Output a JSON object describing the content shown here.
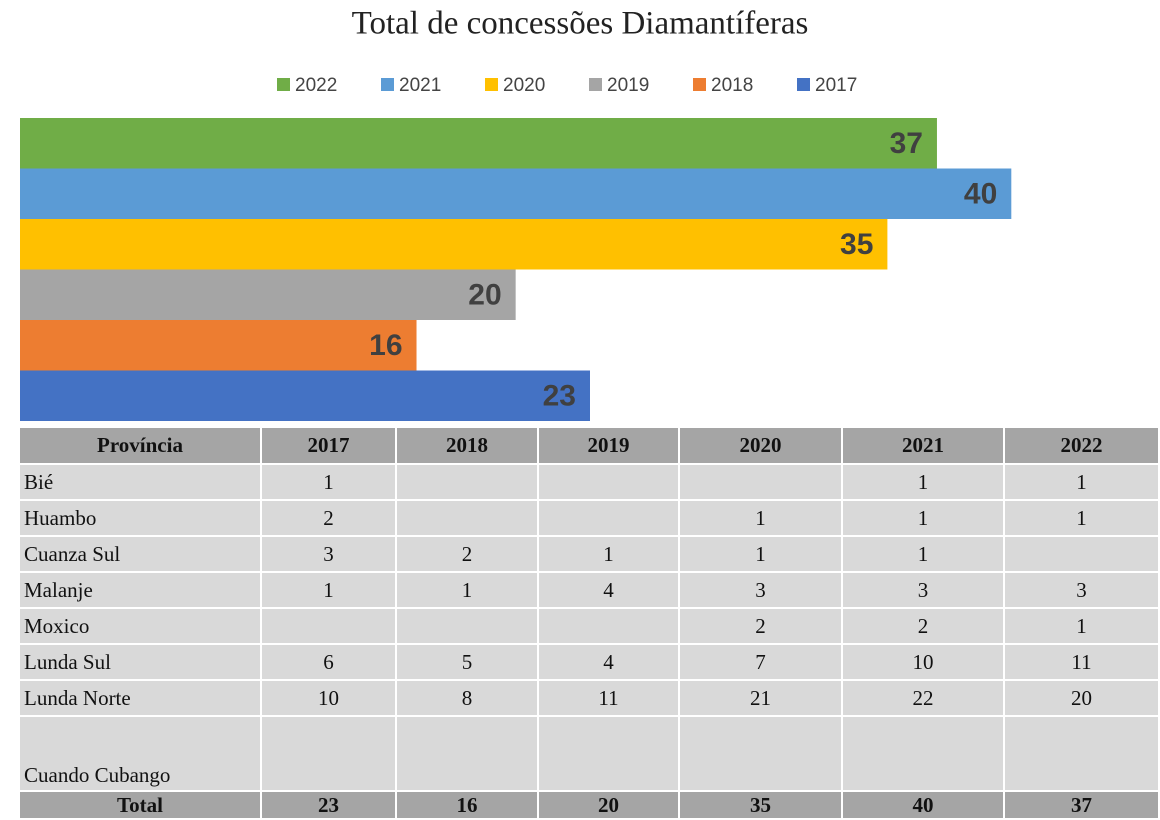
{
  "chart_data": {
    "type": "bar",
    "orientation": "horizontal",
    "title": "Total de concessões Diamantíferas",
    "xlim": [
      0,
      46
    ],
    "series": [
      {
        "name": "2022",
        "color": "#70ad47",
        "values": [
          37
        ]
      },
      {
        "name": "2021",
        "color": "#5b9bd5",
        "values": [
          40
        ]
      },
      {
        "name": "2020",
        "color": "#ffc000",
        "values": [
          35
        ]
      },
      {
        "name": "2019",
        "color": "#a5a5a5",
        "values": [
          20
        ]
      },
      {
        "name": "2018",
        "color": "#ed7d31",
        "values": [
          16
        ]
      },
      {
        "name": "2017",
        "color": "#4472c4",
        "values": [
          23
        ]
      }
    ],
    "legend": "top"
  },
  "table": {
    "header": [
      "Província",
      "2017",
      "2018",
      "2019",
      "2020",
      "2021",
      "2022"
    ],
    "rows": [
      [
        "Bié",
        1,
        null,
        null,
        null,
        1,
        1
      ],
      [
        "Huambo",
        2,
        null,
        null,
        1,
        1,
        1
      ],
      [
        "Cuanza Sul",
        3,
        2,
        1,
        1,
        1,
        null
      ],
      [
        "Malanje",
        1,
        1,
        4,
        3,
        3,
        3
      ],
      [
        "Moxico",
        null,
        null,
        null,
        2,
        2,
        1
      ],
      [
        "Lunda Sul",
        6,
        5,
        4,
        7,
        10,
        11
      ],
      [
        "Lunda Norte",
        10,
        8,
        11,
        21,
        22,
        20
      ],
      [
        "Cuando Cubango",
        null,
        null,
        null,
        null,
        null,
        null
      ]
    ],
    "total": [
      "Total",
      23,
      16,
      20,
      35,
      40,
      37
    ]
  }
}
